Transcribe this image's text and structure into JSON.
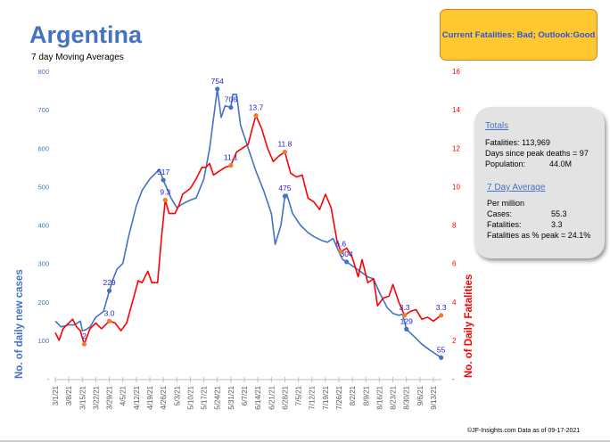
{
  "header": {
    "title": "Argentina",
    "subtitle": "7 day Moving Averages",
    "status": "Current Fatalities: Bad; Outlook:Good"
  },
  "stats": {
    "totals_title": "Totals",
    "fatalities": "Fatalities: 113,969",
    "days_since_peak": "Days since peak deaths = 97",
    "population_label": "Population:",
    "population_value": "44.0M",
    "avg_title": "7 Day Average",
    "per_million": "Per million",
    "cases_label": "Cases:",
    "cases_value": "55.3",
    "fatal_label": "Fatalities:",
    "fatal_value": "3.3",
    "pct_peak": "Fatalities as % peak = 24.1%"
  },
  "footer": "©JF-Insights.com  Data as of 09-17-2021",
  "chart_data": {
    "type": "line",
    "title": "Argentina",
    "subtitle": "7 day Moving Averages",
    "ylabel": "No. of daily new  cases",
    "y2label": "No. of Daily Fatalities",
    "ylim": [
      0,
      800
    ],
    "y2lim": [
      0,
      16
    ],
    "yticks": [
      "-",
      "100",
      "200",
      "300",
      "400",
      "500",
      "600",
      "700",
      "800"
    ],
    "y2ticks": [
      "-",
      "2",
      "4",
      "6",
      "8",
      "10",
      "12",
      "14",
      "16"
    ],
    "xticks": [
      "3/1/21",
      "3/8/21",
      "3/15/21",
      "3/22/21",
      "3/29/21",
      "4/5/21",
      "4/12/21",
      "4/19/21",
      "4/26/21",
      "5/3/21",
      "5/10/21",
      "5/17/21",
      "5/24/21",
      "5/31/21",
      "6/7/21",
      "6/14/21",
      "6/21/21",
      "6/28/21",
      "7/5/21",
      "7/12/21",
      "7/19/21",
      "7/26/21",
      "8/2/21",
      "8/9/21",
      "8/16/21",
      "8/23/21",
      "8/30/21",
      "9/6/21",
      "9/13/21"
    ],
    "grid": false,
    "colors": {
      "cases": "#4472c4",
      "deaths": "#ff0000",
      "case_marker": "#4472c4",
      "death_marker": "#ed7d31",
      "label": "#2222dd"
    },
    "series": [
      {
        "axis": "left",
        "points": [
          [
            "3/1/21",
            150
          ],
          [
            "3/4/21",
            135
          ],
          [
            "3/8/21",
            140
          ],
          [
            "3/11/21",
            140
          ],
          [
            "3/14/21",
            150
          ],
          [
            "3/15/21",
            125
          ],
          [
            "3/17/21",
            128
          ],
          [
            "3/19/21",
            135
          ],
          [
            "3/22/21",
            160
          ],
          [
            "3/26/21",
            175
          ],
          [
            "3/29/21",
            229
          ],
          [
            "3/31/21",
            260
          ],
          [
            "4/2/21",
            285
          ],
          [
            "4/5/21",
            300
          ],
          [
            "4/8/21",
            370
          ],
          [
            "4/12/21",
            450
          ],
          [
            "4/15/21",
            490
          ],
          [
            "4/19/21",
            520
          ],
          [
            "4/23/21",
            540
          ],
          [
            "4/24/21",
            545
          ],
          [
            "4/26/21",
            517
          ],
          [
            "4/30/21",
            470
          ],
          [
            "5/3/21",
            445
          ],
          [
            "5/6/21",
            455
          ],
          [
            "5/10/21",
            465
          ],
          [
            "5/13/21",
            470
          ],
          [
            "5/17/21",
            520
          ],
          [
            "5/20/21",
            600
          ],
          [
            "5/24/21",
            754
          ],
          [
            "5/26/21",
            680
          ],
          [
            "5/28/21",
            710
          ],
          [
            "5/31/21",
            706
          ],
          [
            "6/1/21",
            740
          ],
          [
            "6/3/21",
            740
          ],
          [
            "6/5/21",
            660
          ],
          [
            "6/9/21",
            600
          ],
          [
            "6/13/21",
            540
          ],
          [
            "6/17/21",
            490
          ],
          [
            "6/21/21",
            430
          ],
          [
            "6/23/21",
            350
          ],
          [
            "6/26/21",
            400
          ],
          [
            "6/28/21",
            475
          ],
          [
            "6/29/21",
            480
          ],
          [
            "7/2/21",
            430
          ],
          [
            "7/6/21",
            400
          ],
          [
            "7/10/21",
            380
          ],
          [
            "7/13/21",
            370
          ],
          [
            "7/17/21",
            360
          ],
          [
            "7/20/21",
            355
          ],
          [
            "7/23/21",
            365
          ],
          [
            "7/26/21",
            330
          ],
          [
            "7/28/21",
            310
          ],
          [
            "7/30/21",
            304
          ],
          [
            "8/3/21",
            290
          ],
          [
            "8/6/21",
            280
          ],
          [
            "8/10/21",
            265
          ],
          [
            "8/13/21",
            260
          ],
          [
            "8/16/21",
            225
          ],
          [
            "8/20/21",
            185
          ],
          [
            "8/23/21",
            170
          ],
          [
            "8/26/21",
            165
          ],
          [
            "8/28/21",
            168
          ],
          [
            "8/30/21",
            129
          ],
          [
            "9/3/21",
            110
          ],
          [
            "9/7/21",
            90
          ],
          [
            "9/11/21",
            75
          ],
          [
            "9/14/21",
            65
          ],
          [
            "9/17/21",
            55
          ]
        ]
      },
      {
        "axis": "right",
        "points": [
          [
            "3/1/21",
            2.4
          ],
          [
            "3/3/21",
            2.0
          ],
          [
            "3/5/21",
            2.6
          ],
          [
            "3/7/21",
            2.8
          ],
          [
            "3/10/21",
            3.1
          ],
          [
            "3/12/21",
            2.7
          ],
          [
            "3/14/21",
            2.5
          ],
          [
            "3/16/21",
            1.8
          ],
          [
            "3/19/21",
            2.6
          ],
          [
            "3/22/21",
            2.9
          ],
          [
            "3/25/21",
            2.6
          ],
          [
            "3/29/21",
            3.0
          ],
          [
            "4/1/21",
            2.9
          ],
          [
            "4/4/21",
            2.5
          ],
          [
            "4/7/21",
            2.9
          ],
          [
            "4/10/21",
            4.0
          ],
          [
            "4/13/21",
            5.1
          ],
          [
            "4/15/21",
            5.0
          ],
          [
            "4/18/21",
            5.6
          ],
          [
            "4/20/21",
            5.0
          ],
          [
            "4/23/21",
            5.0
          ],
          [
            "4/25/21",
            7.3
          ],
          [
            "4/27/21",
            9.3
          ],
          [
            "4/29/21",
            8.6
          ],
          [
            "5/2/21",
            8.6
          ],
          [
            "5/4/21",
            9.0
          ],
          [
            "5/6/21",
            9.6
          ],
          [
            "5/10/21",
            9.9
          ],
          [
            "5/13/21",
            10.4
          ],
          [
            "5/16/21",
            11.0
          ],
          [
            "5/18/21",
            11.0
          ],
          [
            "5/20/21",
            11.2
          ],
          [
            "5/22/21",
            10.6
          ],
          [
            "5/25/21",
            10.8
          ],
          [
            "5/28/21",
            11.0
          ],
          [
            "5/31/21",
            11.1
          ],
          [
            "6/3/21",
            11.8
          ],
          [
            "6/6/21",
            12.0
          ],
          [
            "6/9/21",
            12.2
          ],
          [
            "6/11/21",
            13.0
          ],
          [
            "6/13/21",
            13.7
          ],
          [
            "6/16/21",
            13.0
          ],
          [
            "6/19/21",
            12.0
          ],
          [
            "6/22/21",
            11.3
          ],
          [
            "6/25/21",
            11.6
          ],
          [
            "6/28/21",
            11.8
          ],
          [
            "7/1/21",
            10.7
          ],
          [
            "7/4/21",
            10.5
          ],
          [
            "7/7/21",
            10.6
          ],
          [
            "7/10/21",
            9.4
          ],
          [
            "7/13/21",
            9.2
          ],
          [
            "7/16/21",
            8.8
          ],
          [
            "7/19/21",
            9.6
          ],
          [
            "7/22/21",
            8.9
          ],
          [
            "7/25/21",
            7.2
          ],
          [
            "7/27/21",
            6.6
          ],
          [
            "7/30/21",
            6.8
          ],
          [
            "8/2/21",
            6.3
          ],
          [
            "8/5/21",
            5.3
          ],
          [
            "8/7/21",
            6.2
          ],
          [
            "8/10/21",
            5.0
          ],
          [
            "8/13/21",
            5.2
          ],
          [
            "8/15/21",
            3.8
          ],
          [
            "8/18/21",
            4.2
          ],
          [
            "8/21/21",
            4.3
          ],
          [
            "8/23/21",
            4.9
          ],
          [
            "8/26/21",
            4.0
          ],
          [
            "8/29/21",
            3.3
          ],
          [
            "9/1/21",
            3.5
          ],
          [
            "9/4/21",
            3.6
          ],
          [
            "9/7/21",
            3.1
          ],
          [
            "9/10/21",
            3.2
          ],
          [
            "9/13/21",
            3.0
          ],
          [
            "9/17/21",
            3.3
          ]
        ]
      }
    ],
    "annotations": [
      {
        "series": 0,
        "x": "3/29/21",
        "y": 229,
        "label": "229"
      },
      {
        "series": 0,
        "x": "4/26/21",
        "y": 517,
        "label": "517"
      },
      {
        "series": 0,
        "x": "5/24/21",
        "y": 754,
        "label": "754"
      },
      {
        "series": 0,
        "x": "5/31/21",
        "y": 706,
        "label": "706"
      },
      {
        "series": 0,
        "x": "6/28/21",
        "y": 475,
        "label": "475"
      },
      {
        "series": 0,
        "x": "7/30/21",
        "y": 304,
        "label": "304"
      },
      {
        "series": 0,
        "x": "8/30/21",
        "y": 129,
        "label": "129"
      },
      {
        "series": 0,
        "x": "9/17/21",
        "y": 55,
        "label": "55"
      },
      {
        "series": 1,
        "x": "3/16/21",
        "y": 1.8,
        "label": "2"
      },
      {
        "series": 1,
        "x": "3/29/21",
        "y": 3.0,
        "label": "3.0"
      },
      {
        "series": 1,
        "x": "4/27/21",
        "y": 9.3,
        "label": "9.3"
      },
      {
        "series": 1,
        "x": "5/31/21",
        "y": 11.1,
        "label": "11.1"
      },
      {
        "series": 1,
        "x": "6/13/21",
        "y": 13.7,
        "label": "13.7"
      },
      {
        "series": 1,
        "x": "6/28/21",
        "y": 11.8,
        "label": "11.8"
      },
      {
        "series": 1,
        "x": "7/27/21",
        "y": 6.6,
        "label": "6.6"
      },
      {
        "series": 1,
        "x": "8/29/21",
        "y": 3.3,
        "label": "3.3"
      },
      {
        "series": 1,
        "x": "9/17/21",
        "y": 3.3,
        "label": "3.3"
      }
    ]
  }
}
